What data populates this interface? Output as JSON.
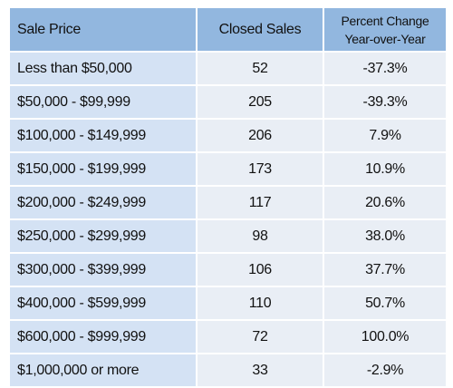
{
  "table": {
    "headers": {
      "sale_price": "Sale Price",
      "closed_sales": "Closed Sales",
      "percent_change_line1": "Percent Change",
      "percent_change_line2": "Year-over-Year"
    },
    "rows": [
      {
        "sale_price": "Less than $50,000",
        "closed_sales": "52",
        "percent_change": "-37.3%"
      },
      {
        "sale_price": "$50,000 - $99,999",
        "closed_sales": "205",
        "percent_change": "-39.3%"
      },
      {
        "sale_price": "$100,000 - $149,999",
        "closed_sales": "206",
        "percent_change": "7.9%"
      },
      {
        "sale_price": "$150,000 - $199,999",
        "closed_sales": "173",
        "percent_change": "10.9%"
      },
      {
        "sale_price": "$200,000 - $249,999",
        "closed_sales": "117",
        "percent_change": "20.6%"
      },
      {
        "sale_price": "$250,000 - $299,999",
        "closed_sales": "98",
        "percent_change": "38.0%"
      },
      {
        "sale_price": "$300,000 - $399,999",
        "closed_sales": "106",
        "percent_change": "37.7%"
      },
      {
        "sale_price": "$400,000 - $599,999",
        "closed_sales": "110",
        "percent_change": "50.7%"
      },
      {
        "sale_price": "$600,000 - $999,999",
        "closed_sales": "72",
        "percent_change": "100.0%"
      },
      {
        "sale_price": "$1,000,000 or more",
        "closed_sales": "33",
        "percent_change": "-2.9%"
      }
    ]
  },
  "colors": {
    "header_bg": "#92b7df",
    "price_cell_bg": "#d4e2f4",
    "value_cell_bg": "#e9eef5"
  }
}
